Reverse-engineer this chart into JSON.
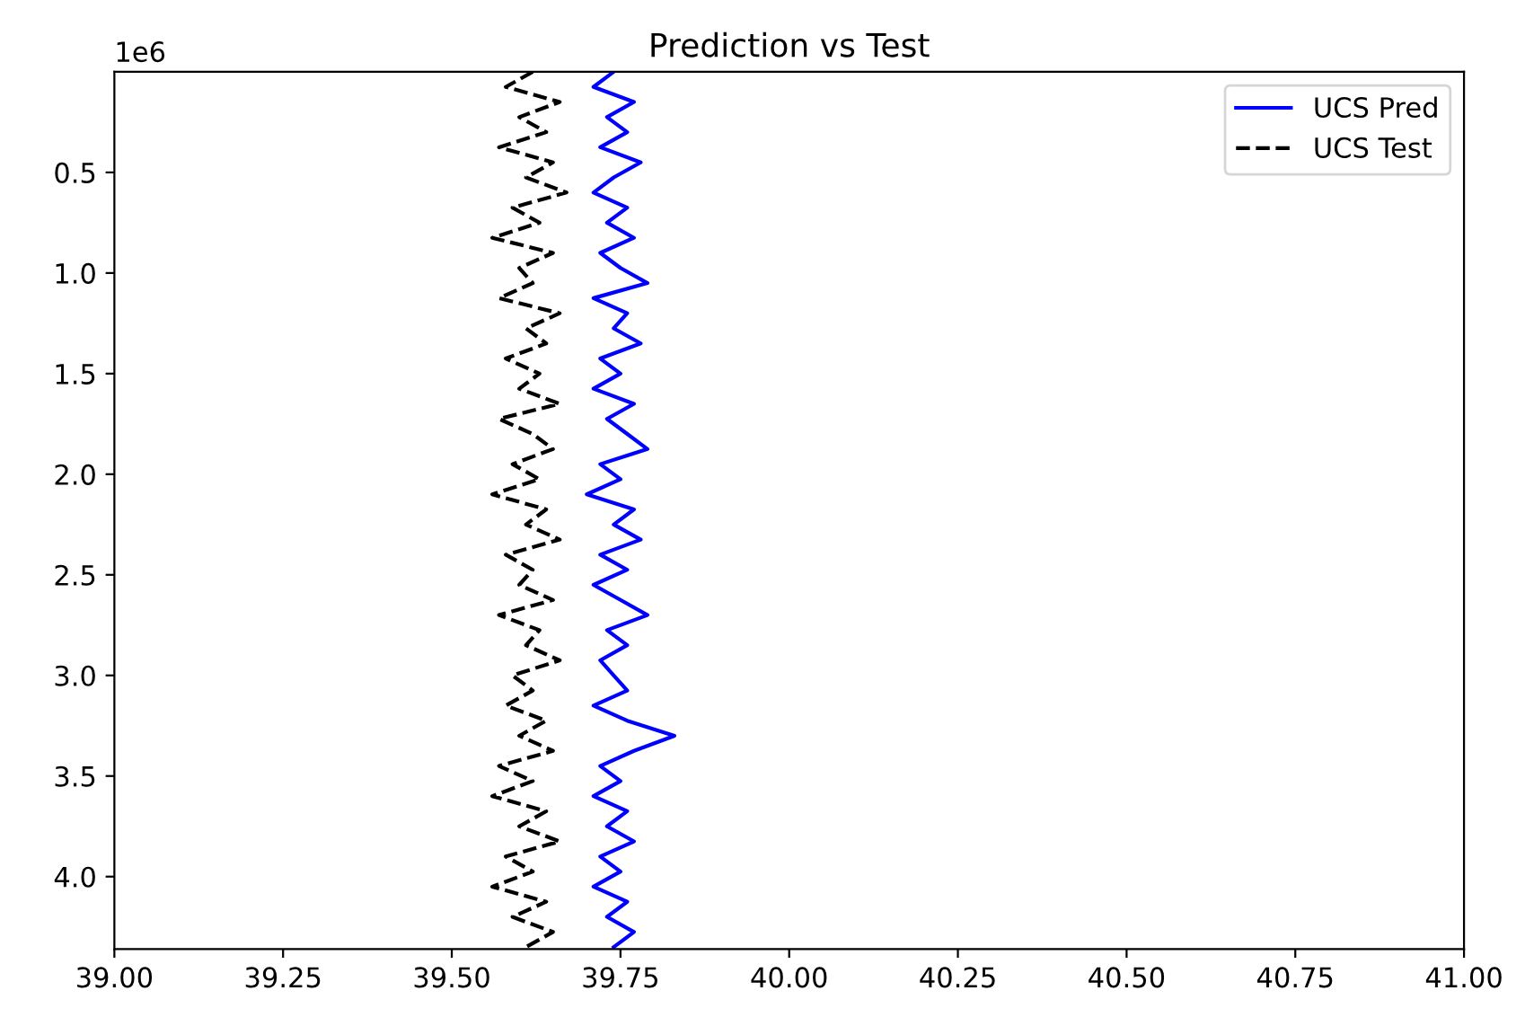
{
  "chart_data": {
    "type": "line",
    "title": "Prediction vs Test",
    "orientation": "horizontal",
    "annotations": [
      "1e6"
    ],
    "x": [
      0,
      0.075,
      0.15,
      0.225,
      0.3,
      0.375,
      0.45,
      0.525,
      0.6,
      0.675,
      0.75,
      0.825,
      0.9,
      0.975,
      1.05,
      1.125,
      1.2,
      1.275,
      1.35,
      1.425,
      1.5,
      1.575,
      1.65,
      1.725,
      1.8,
      1.875,
      1.95,
      2.025,
      2.1,
      2.175,
      2.25,
      2.325,
      2.4,
      2.475,
      2.55,
      2.625,
      2.7,
      2.775,
      2.85,
      2.925,
      3.0,
      3.075,
      3.15,
      3.225,
      3.3,
      3.375,
      3.45,
      3.525,
      3.6,
      3.675,
      3.75,
      3.825,
      3.9,
      3.975,
      4.05,
      4.125,
      4.2,
      4.275,
      4.35
    ],
    "series": [
      {
        "name": "UCS Pred",
        "color": "#0000ff",
        "line_style": "solid",
        "values": [
          39.74,
          39.71,
          39.77,
          39.73,
          39.76,
          39.72,
          39.78,
          39.74,
          39.71,
          39.76,
          39.73,
          39.77,
          39.72,
          39.75,
          39.79,
          39.71,
          39.76,
          39.74,
          39.78,
          39.72,
          39.75,
          39.71,
          39.77,
          39.73,
          39.76,
          39.79,
          39.72,
          39.75,
          39.7,
          39.77,
          39.74,
          39.78,
          39.72,
          39.76,
          39.71,
          39.75,
          39.79,
          39.73,
          39.76,
          39.72,
          39.74,
          39.76,
          39.71,
          39.76,
          39.83,
          39.77,
          39.72,
          39.75,
          39.71,
          39.76,
          39.73,
          39.77,
          39.72,
          39.75,
          39.71,
          39.76,
          39.73,
          39.77,
          39.74
        ]
      },
      {
        "name": "UCS Test",
        "color": "#000000",
        "line_style": "dashed",
        "values": [
          39.62,
          39.58,
          39.66,
          39.6,
          39.64,
          39.57,
          39.65,
          39.61,
          39.67,
          39.59,
          39.63,
          39.56,
          39.65,
          39.6,
          39.62,
          39.57,
          39.66,
          39.61,
          39.64,
          39.58,
          39.63,
          39.6,
          39.66,
          39.57,
          39.62,
          39.65,
          39.59,
          39.63,
          39.56,
          39.64,
          39.61,
          39.66,
          39.58,
          39.62,
          39.6,
          39.65,
          39.57,
          39.63,
          39.61,
          39.66,
          39.59,
          39.62,
          39.58,
          39.64,
          39.6,
          39.65,
          39.57,
          39.62,
          39.56,
          39.64,
          39.6,
          39.66,
          39.58,
          39.62,
          39.56,
          39.64,
          39.59,
          39.65,
          39.61
        ]
      }
    ],
    "xlim": [
      39,
      41
    ],
    "xticks": [
      {
        "value": 39,
        "label": "39.00"
      },
      {
        "value": 39.25,
        "label": "39.25"
      },
      {
        "value": 39.5,
        "label": "39.50"
      },
      {
        "value": 39.75,
        "label": "39.75"
      },
      {
        "value": 40,
        "label": "40.00"
      },
      {
        "value": 40.25,
        "label": "40.25"
      },
      {
        "value": 40.5,
        "label": "40.50"
      },
      {
        "value": 40.75,
        "label": "40.75"
      },
      {
        "value": 41,
        "label": "41.00"
      }
    ],
    "ylim": [
      4.36,
      0
    ],
    "yticks": [
      {
        "value": 0.5,
        "label": "0.5"
      },
      {
        "value": 1,
        "label": "1.0"
      },
      {
        "value": 1.5,
        "label": "1.5"
      },
      {
        "value": 2,
        "label": "2.0"
      },
      {
        "value": 2.5,
        "label": "2.5"
      },
      {
        "value": 3,
        "label": "3.0"
      },
      {
        "value": 3.5,
        "label": "3.5"
      },
      {
        "value": 4,
        "label": "4.0"
      }
    ],
    "grid": false,
    "legend": "top right"
  }
}
